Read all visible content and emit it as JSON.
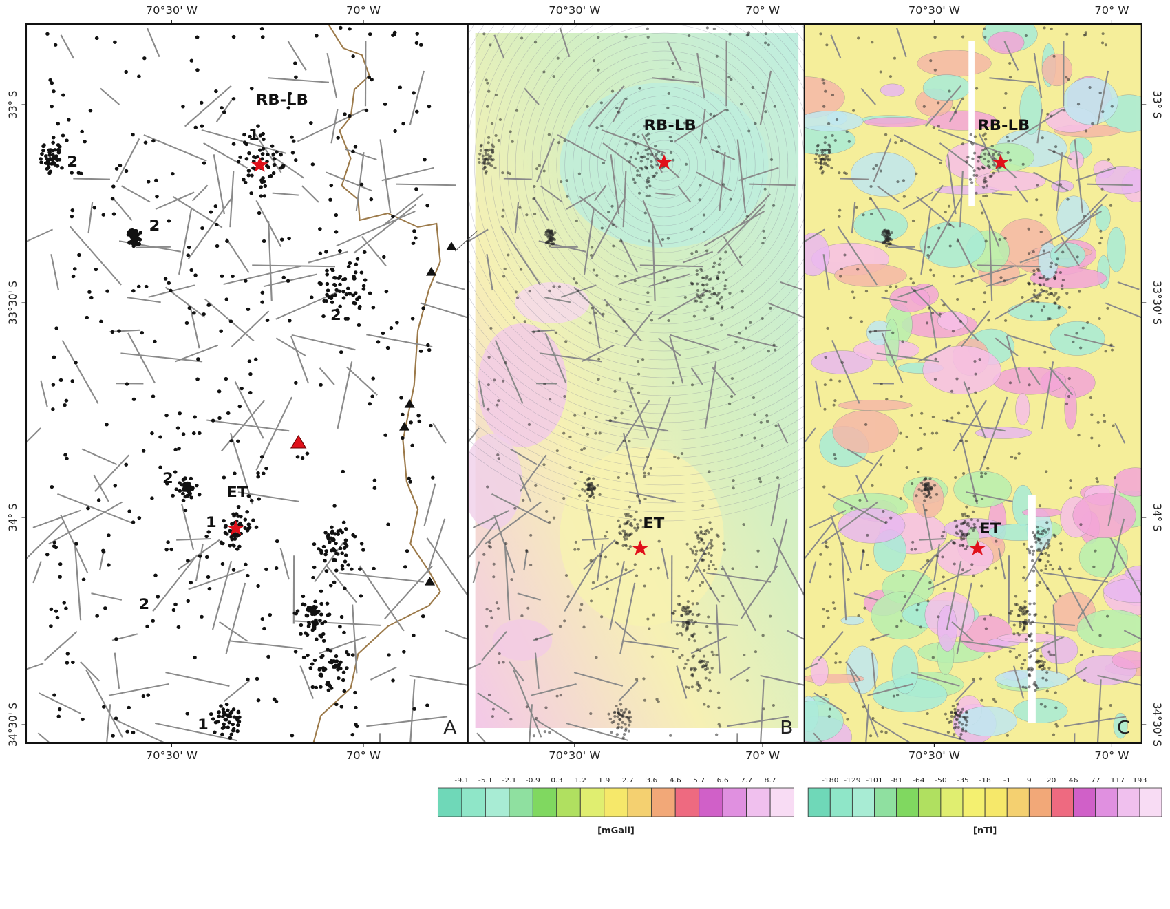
{
  "axes": {
    "lon_labels": [
      "70°30' W",
      "70° W"
    ],
    "lat_labels": [
      "33° S",
      "33°30' S",
      "34° S",
      "34°30' S"
    ]
  },
  "panels": [
    {
      "letter": "A",
      "annotations": [
        "RB-LB",
        "1",
        "2",
        "2",
        "2",
        "2",
        "ET",
        "1",
        "2",
        "1"
      ]
    },
    {
      "letter": "B",
      "annotations": [
        "RB-LB",
        "ET"
      ]
    },
    {
      "letter": "C",
      "annotations": [
        "RB-LB",
        "ET"
      ]
    }
  ],
  "colorbars": [
    {
      "unit": "[mGall]",
      "labels": [
        "-9.1",
        "-5.1",
        "-2.1",
        "-0.9",
        "0.3",
        "1.2",
        "1.9",
        "2.7",
        "3.6",
        "4.6",
        "5.7",
        "6.6",
        "7.7",
        "8.7"
      ]
    },
    {
      "unit": "[nTl]",
      "labels": [
        "-180",
        "-129",
        "-101",
        "-81",
        "-64",
        "-50",
        "-35",
        "-18",
        "-1",
        "9",
        "20",
        "46",
        "77",
        "117",
        "193"
      ]
    }
  ]
}
